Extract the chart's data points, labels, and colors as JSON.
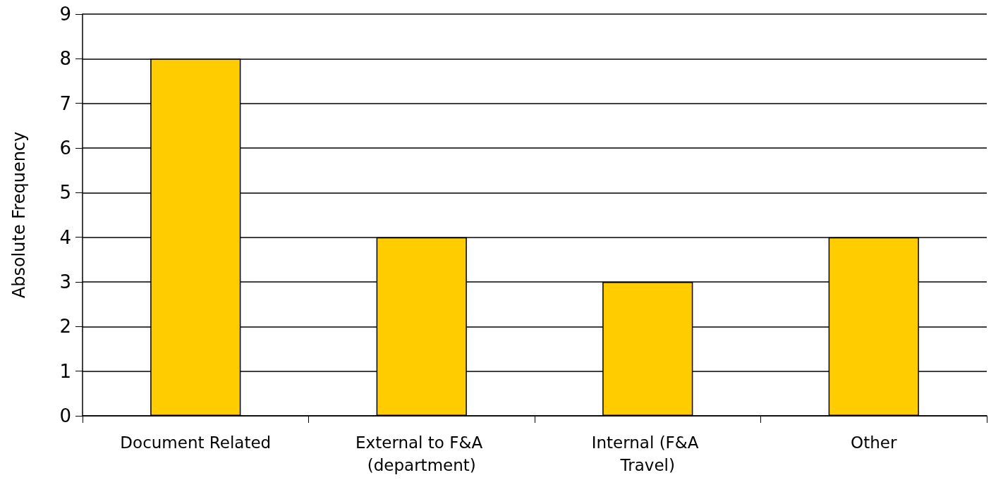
{
  "chart_data": {
    "type": "bar",
    "ylabel": "Absolute Frequency",
    "categories": [
      "Document Related",
      "External to F&A (department)",
      "Internal (F&A Travel)",
      "Other"
    ],
    "values": [
      8,
      4,
      3,
      4
    ],
    "color": "#ffcc00",
    "ylim": [
      0,
      9
    ],
    "yticks": [
      0,
      1,
      2,
      3,
      4,
      5,
      6,
      7,
      8,
      9
    ],
    "grid": "y"
  }
}
